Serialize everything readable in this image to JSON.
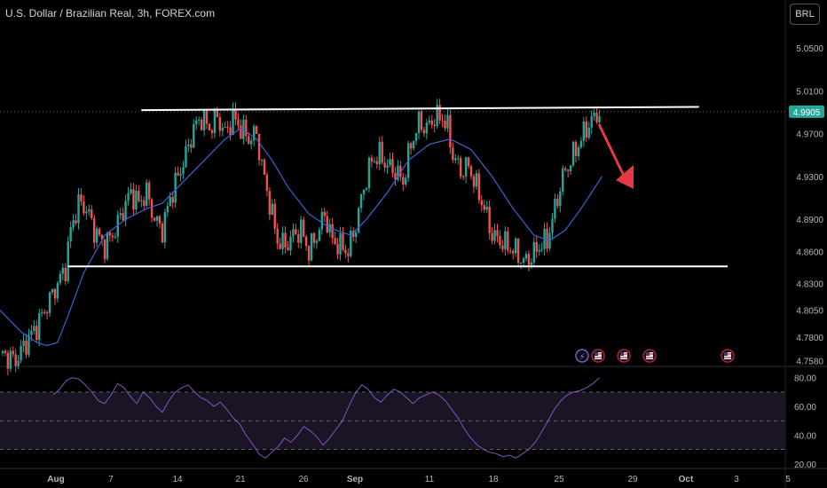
{
  "header": {
    "title": "U.S. Dollar / Brazilian Real, 3h, FOREX.com",
    "currency_button": "BRL"
  },
  "colors": {
    "up": "#26a69a",
    "down": "#ef5350",
    "ma": "#3d63d6",
    "rsi": "#7e57c2",
    "price_tag": "#26a69a"
  },
  "chart_data": [
    {
      "type": "candlestick",
      "title": "U.S. Dollar / Brazilian Real, 3h, FOREX.com",
      "y_ticks": [
        "5.0500",
        "5.0100",
        "4.9700",
        "4.9300",
        "4.8900",
        "4.8600",
        "4.8300",
        "4.8050",
        "4.7800",
        "4.7580"
      ],
      "ylim": [
        4.755,
        5.07
      ],
      "current_price": "4.9905",
      "close_path": [
        [
          0,
          4.765
        ],
        [
          6,
          4.758
        ],
        [
          10,
          4.775
        ],
        [
          14,
          4.79
        ],
        [
          18,
          4.81
        ],
        [
          22,
          4.83
        ],
        [
          25,
          4.845
        ],
        [
          27,
          4.88
        ],
        [
          30,
          4.905
        ],
        [
          33,
          4.9
        ],
        [
          36,
          4.88
        ],
        [
          40,
          4.865
        ],
        [
          44,
          4.88
        ],
        [
          48,
          4.905
        ],
        [
          50,
          4.915
        ],
        [
          53,
          4.905
        ],
        [
          56,
          4.915
        ],
        [
          59,
          4.89
        ],
        [
          62,
          4.88
        ],
        [
          65,
          4.91
        ],
        [
          68,
          4.93
        ],
        [
          71,
          4.95
        ],
        [
          74,
          4.975
        ],
        [
          77,
          4.985
        ],
        [
          80,
          4.975
        ],
        [
          83,
          4.985
        ],
        [
          86,
          4.97
        ],
        [
          89,
          4.985
        ],
        [
          92,
          4.975
        ],
        [
          95,
          4.965
        ],
        [
          98,
          4.97
        ],
        [
          100,
          4.94
        ],
        [
          103,
          4.905
        ],
        [
          106,
          4.87
        ],
        [
          109,
          4.865
        ],
        [
          112,
          4.875
        ],
        [
          115,
          4.88
        ],
        [
          118,
          4.86
        ],
        [
          121,
          4.875
        ],
        [
          124,
          4.895
        ],
        [
          127,
          4.87
        ],
        [
          130,
          4.865
        ],
        [
          133,
          4.86
        ],
        [
          136,
          4.885
        ],
        [
          139,
          4.92
        ],
        [
          142,
          4.945
        ],
        [
          145,
          4.95
        ],
        [
          148,
          4.94
        ],
        [
          151,
          4.935
        ],
        [
          154,
          4.925
        ],
        [
          157,
          4.96
        ],
        [
          160,
          4.98
        ],
        [
          163,
          4.975
        ],
        [
          166,
          4.985
        ],
        [
          169,
          4.985
        ],
        [
          171,
          4.975
        ],
        [
          173,
          4.95
        ],
        [
          176,
          4.935
        ],
        [
          179,
          4.94
        ],
        [
          182,
          4.92
        ],
        [
          185,
          4.9
        ],
        [
          188,
          4.875
        ],
        [
          191,
          4.87
        ],
        [
          194,
          4.865
        ],
        [
          197,
          4.86
        ],
        [
          200,
          4.85
        ],
        [
          203,
          4.855
        ],
        [
          206,
          4.865
        ],
        [
          209,
          4.87
        ],
        [
          212,
          4.9
        ],
        [
          215,
          4.93
        ],
        [
          218,
          4.945
        ],
        [
          221,
          4.96
        ],
        [
          224,
          4.975
        ],
        [
          227,
          4.985
        ],
        [
          229,
          4.99
        ]
      ],
      "moving_average": [
        [
          0,
          4.805
        ],
        [
          8,
          4.785
        ],
        [
          14,
          4.775
        ],
        [
          18,
          4.772
        ],
        [
          22,
          4.775
        ],
        [
          26,
          4.8
        ],
        [
          32,
          4.84
        ],
        [
          40,
          4.875
        ],
        [
          48,
          4.89
        ],
        [
          56,
          4.9
        ],
        [
          62,
          4.905
        ],
        [
          70,
          4.925
        ],
        [
          78,
          4.945
        ],
        [
          86,
          4.965
        ],
        [
          92,
          4.975
        ],
        [
          98,
          4.965
        ],
        [
          104,
          4.945
        ],
        [
          110,
          4.92
        ],
        [
          118,
          4.895
        ],
        [
          126,
          4.882
        ],
        [
          134,
          4.875
        ],
        [
          140,
          4.89
        ],
        [
          148,
          4.915
        ],
        [
          156,
          4.945
        ],
        [
          164,
          4.96
        ],
        [
          172,
          4.965
        ],
        [
          180,
          4.955
        ],
        [
          188,
          4.93
        ],
        [
          196,
          4.9
        ],
        [
          204,
          4.875
        ],
        [
          210,
          4.87
        ],
        [
          216,
          4.88
        ],
        [
          222,
          4.9
        ],
        [
          230,
          4.93
        ]
      ],
      "annotations": {
        "resistance_line": {
          "x": [
            54,
            267
          ],
          "y": [
            4.992,
            4.995
          ]
        },
        "support_line": {
          "x": [
            26,
            278
          ],
          "y": [
            4.846,
            4.846
          ]
        },
        "arrow": "down"
      }
    },
    {
      "type": "line",
      "name": "RSI",
      "y_ticks": [
        "80.00",
        "60.00",
        "40.00",
        "20.00"
      ],
      "ylim": [
        18,
        86
      ],
      "levels": [
        70,
        50,
        30
      ],
      "values": [
        68,
        72,
        78,
        80,
        79,
        75,
        70,
        64,
        62,
        68,
        76,
        73,
        67,
        62,
        70,
        66,
        60,
        56,
        64,
        70,
        73,
        75,
        70,
        66,
        64,
        60,
        63,
        58,
        52,
        48,
        40,
        34,
        27,
        24,
        28,
        32,
        38,
        35,
        40,
        46,
        43,
        39,
        33,
        38,
        44,
        50,
        60,
        69,
        75,
        72,
        66,
        63,
        68,
        72,
        70,
        66,
        62,
        66,
        68,
        70,
        68,
        64,
        58,
        52,
        44,
        38,
        33,
        30,
        28,
        27,
        25,
        26,
        24,
        27,
        30,
        35,
        42,
        50,
        58,
        64,
        68,
        70,
        71,
        73,
        76,
        80
      ]
    }
  ],
  "x_ticks": [
    "Aug",
    "7",
    "14",
    "21",
    "26",
    "Sep",
    "11",
    "18",
    "25",
    "29",
    "Oct",
    "3",
    "5"
  ]
}
